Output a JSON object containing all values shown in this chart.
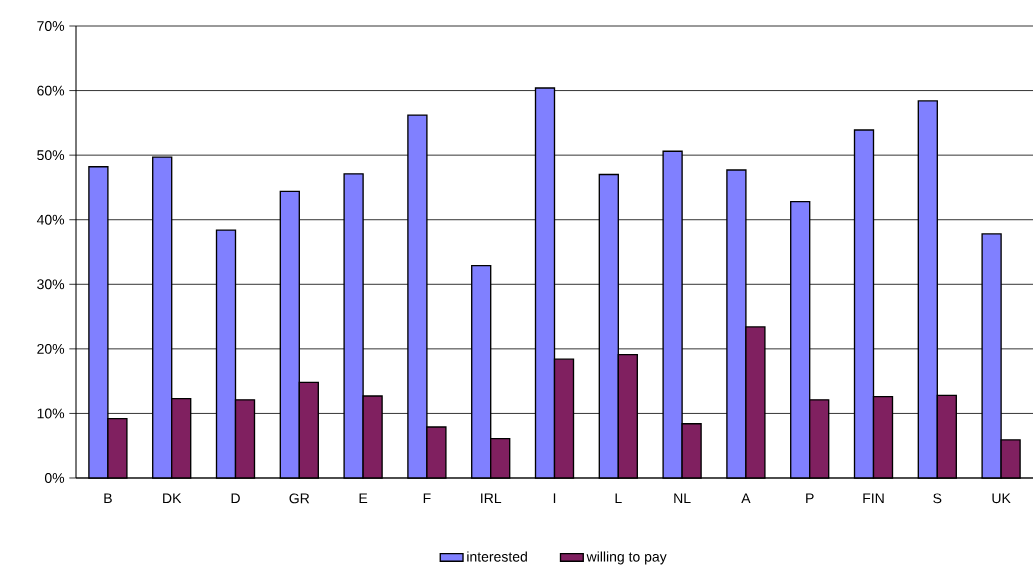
{
  "chart_data": {
    "type": "bar",
    "categories": [
      "B",
      "DK",
      "D",
      "GR",
      "E",
      "F",
      "IRL",
      "I",
      "L",
      "NL",
      "A",
      "P",
      "FIN",
      "S",
      "UK"
    ],
    "series": [
      {
        "name": "interested",
        "color": "#8080ff",
        "values": [
          48.2,
          49.7,
          38.4,
          44.4,
          47.1,
          56.2,
          32.9,
          60.4,
          47.0,
          50.6,
          47.7,
          42.8,
          53.9,
          58.4,
          37.8
        ]
      },
      {
        "name": "willing to pay",
        "color": "#802060",
        "values": [
          9.2,
          12.3,
          12.1,
          14.8,
          12.7,
          7.9,
          6.1,
          18.4,
          19.1,
          8.4,
          23.4,
          12.1,
          12.6,
          12.8,
          5.9
        ]
      }
    ],
    "ylim": [
      0,
      70
    ],
    "yticks": [
      {
        "value": 0,
        "label": "0%"
      },
      {
        "value": 10,
        "label": "10%"
      },
      {
        "value": 20,
        "label": "20%"
      },
      {
        "value": 30,
        "label": "30%"
      },
      {
        "value": 40,
        "label": "40%"
      },
      {
        "value": 50,
        "label": "50%"
      },
      {
        "value": 60,
        "label": "60%"
      },
      {
        "value": 70,
        "label": "70%"
      }
    ],
    "grid": "y",
    "legend": "bottom"
  }
}
